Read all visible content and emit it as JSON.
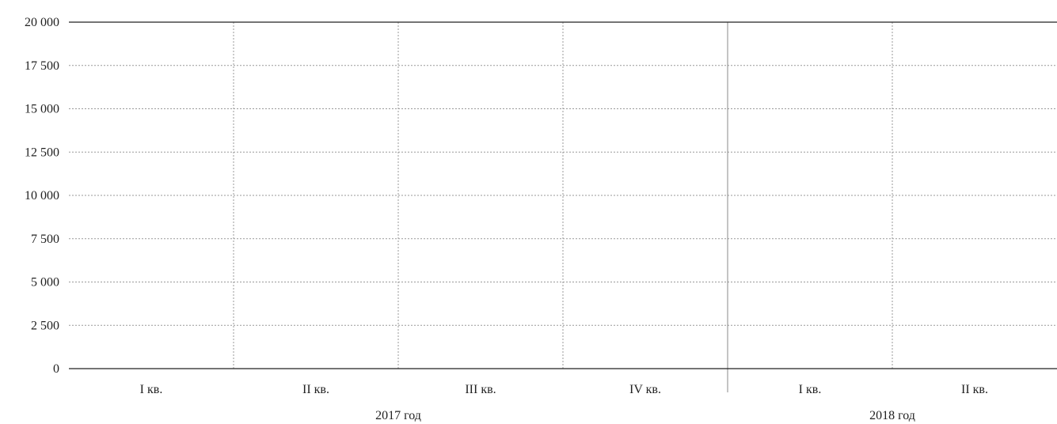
{
  "chart_data": {
    "type": "bar",
    "ylim": [
      0,
      20000
    ],
    "y_ticks": [
      0,
      2500,
      5000,
      7500,
      10000,
      12500,
      15000,
      17500,
      20000
    ],
    "y_tick_labels": [
      "0",
      "2 500",
      "5 000",
      "7 500",
      "10 000",
      "12 500",
      "15 000",
      "17 500",
      "20 000"
    ],
    "categories": [
      "I кв.",
      "II кв.",
      "III кв.",
      "IV кв.",
      "I кв.",
      "II кв."
    ],
    "groups": [
      {
        "label": "2017 год",
        "count": 4
      },
      {
        "label": "2018 год",
        "count": 2
      }
    ],
    "series": [],
    "grid": true
  },
  "colors": {
    "axis": "#222222",
    "grid": "#999999",
    "separator": "#888888"
  }
}
